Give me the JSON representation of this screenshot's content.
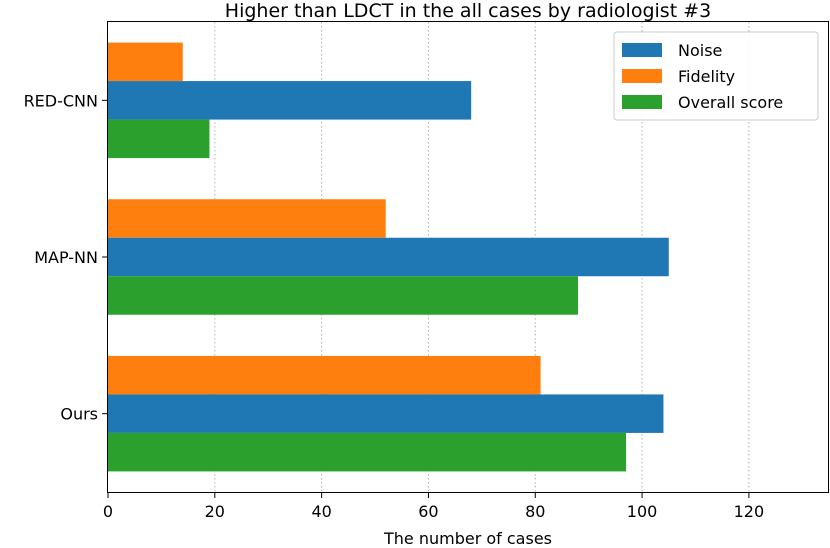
{
  "chart_data": {
    "type": "bar",
    "orientation": "horizontal",
    "title": "Higher than LDCT in the all cases by radiologist #3",
    "xlabel": "The number of cases",
    "ylabel": "",
    "xlim": [
      0,
      135
    ],
    "xticks": [
      0,
      20,
      40,
      60,
      80,
      100,
      120
    ],
    "categories": [
      "RED-CNN",
      "MAP-NN",
      "Ours"
    ],
    "series": [
      {
        "name": "Noise",
        "color": "#1f77b4",
        "values": [
          68,
          105,
          104
        ]
      },
      {
        "name": "Fidelity",
        "color": "#ff7f0e",
        "values": [
          14,
          52,
          81
        ]
      },
      {
        "name": "Overall score",
        "color": "#2ca02c",
        "values": [
          19,
          88,
          97
        ]
      }
    ],
    "bar_order_within_group": [
      "Fidelity",
      "Noise",
      "Overall score"
    ],
    "grid": "x dotted",
    "legend_position": "top-right"
  }
}
